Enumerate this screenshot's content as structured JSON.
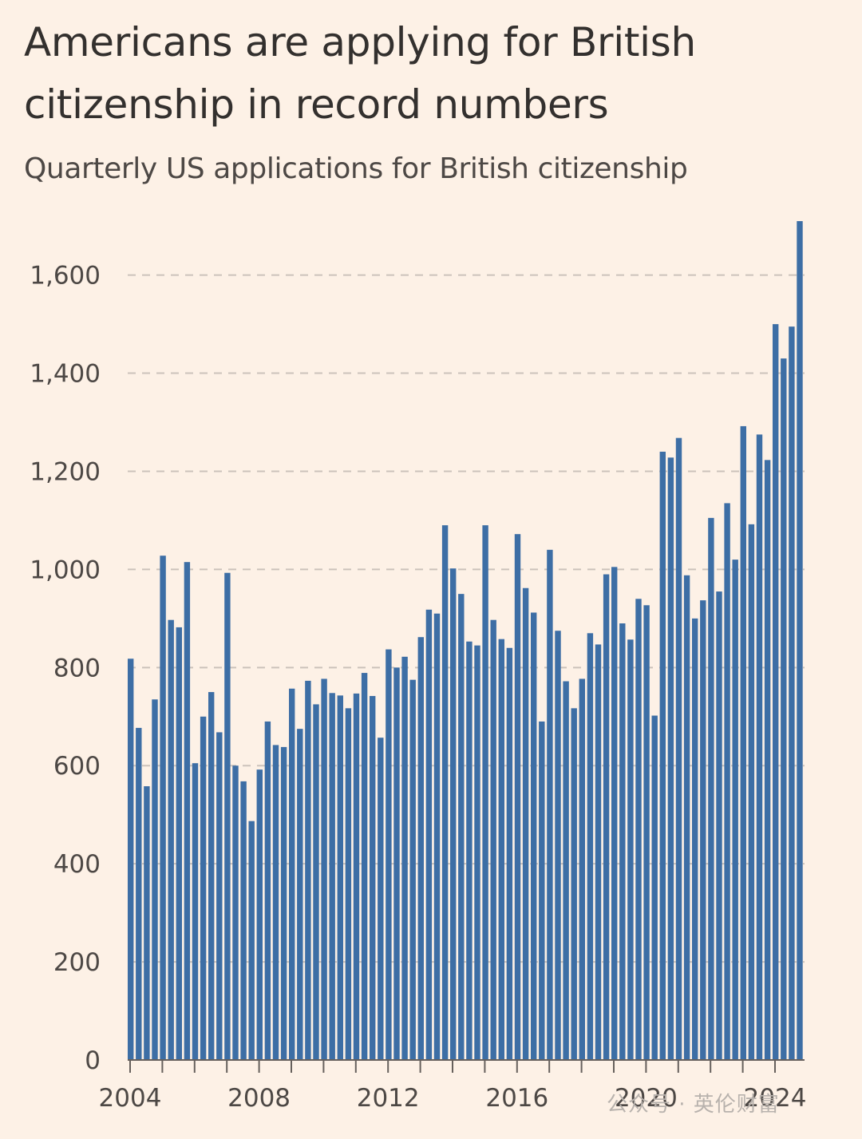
{
  "title": "Americans are applying for British citizenship in record numbers",
  "subtitle": "Quarterly US applications for British citizenship",
  "watermark": "公众号 · 英伦财富",
  "colors": {
    "background": "#fdf1e6",
    "bar": "#3d6ea5",
    "grid": "#ccc2bb",
    "axis": "#66605c"
  },
  "chart_data": {
    "type": "bar",
    "title": "Americans are applying for British citizenship in record numbers",
    "subtitle": "Quarterly US applications for British citizenship",
    "xlabel": "",
    "ylabel": "",
    "ylim": [
      0,
      1700
    ],
    "yticks": [
      0,
      200,
      400,
      600,
      800,
      1000,
      1200,
      1400,
      1600
    ],
    "ytick_labels": [
      "0",
      "200",
      "400",
      "600",
      "800",
      "1,000",
      "1,200",
      "1,400",
      "1,600"
    ],
    "xticks_years": [
      2004,
      2005,
      2006,
      2007,
      2008,
      2009,
      2010,
      2011,
      2012,
      2013,
      2014,
      2015,
      2016,
      2017,
      2018,
      2019,
      2020,
      2021,
      2022,
      2023,
      2024
    ],
    "xtick_labels": [
      {
        "year": 2004,
        "label": "2004"
      },
      {
        "year": 2008,
        "label": "2008"
      },
      {
        "year": 2012,
        "label": "2012"
      },
      {
        "year": 2016,
        "label": "2016"
      },
      {
        "year": 2020,
        "label": "2020"
      },
      {
        "year": 2024,
        "label": "2024"
      }
    ],
    "grid": "horizontal dashed",
    "start_period": "2004 Q1",
    "categories": [
      "2004 Q1",
      "2004 Q2",
      "2004 Q3",
      "2004 Q4",
      "2005 Q1",
      "2005 Q2",
      "2005 Q3",
      "2005 Q4",
      "2006 Q1",
      "2006 Q2",
      "2006 Q3",
      "2006 Q4",
      "2007 Q1",
      "2007 Q2",
      "2007 Q3",
      "2007 Q4",
      "2008 Q1",
      "2008 Q2",
      "2008 Q3",
      "2008 Q4",
      "2009 Q1",
      "2009 Q2",
      "2009 Q3",
      "2009 Q4",
      "2010 Q1",
      "2010 Q2",
      "2010 Q3",
      "2010 Q4",
      "2011 Q1",
      "2011 Q2",
      "2011 Q3",
      "2011 Q4",
      "2012 Q1",
      "2012 Q2",
      "2012 Q3",
      "2012 Q4",
      "2013 Q1",
      "2013 Q2",
      "2013 Q3",
      "2013 Q4",
      "2014 Q1",
      "2014 Q2",
      "2014 Q3",
      "2014 Q4",
      "2015 Q1",
      "2015 Q2",
      "2015 Q3",
      "2015 Q4",
      "2016 Q1",
      "2016 Q2",
      "2016 Q3",
      "2016 Q4",
      "2017 Q1",
      "2017 Q2",
      "2017 Q3",
      "2017 Q4",
      "2018 Q1",
      "2018 Q2",
      "2018 Q3",
      "2018 Q4",
      "2019 Q1",
      "2019 Q2",
      "2019 Q3",
      "2019 Q4",
      "2020 Q1",
      "2020 Q2",
      "2020 Q3",
      "2020 Q4",
      "2021 Q1",
      "2021 Q2",
      "2021 Q3",
      "2021 Q4",
      "2022 Q1",
      "2022 Q2",
      "2022 Q3",
      "2022 Q4",
      "2023 Q1",
      "2023 Q2",
      "2023 Q3",
      "2023 Q4",
      "2024 Q1",
      "2024 Q2",
      "2024 Q3",
      "2024 Q4"
    ],
    "values": [
      818,
      677,
      558,
      735,
      1028,
      897,
      882,
      1015,
      605,
      700,
      750,
      668,
      993,
      600,
      568,
      487,
      592,
      690,
      642,
      638,
      757,
      675,
      773,
      725,
      777,
      748,
      743,
      717,
      747,
      789,
      742,
      657,
      837,
      800,
      822,
      775,
      862,
      918,
      910,
      1090,
      1002,
      950,
      853,
      845,
      1090,
      897,
      858,
      840,
      1072,
      962,
      912,
      690,
      1040,
      875,
      772,
      717,
      777,
      870,
      847,
      990,
      1005,
      890,
      857,
      940,
      927,
      702,
      1240,
      1228,
      1268,
      988,
      900,
      937,
      1105,
      955,
      1135,
      1020,
      1292,
      1092,
      1275,
      1223,
      1500,
      1430,
      1495,
      1710
    ]
  }
}
